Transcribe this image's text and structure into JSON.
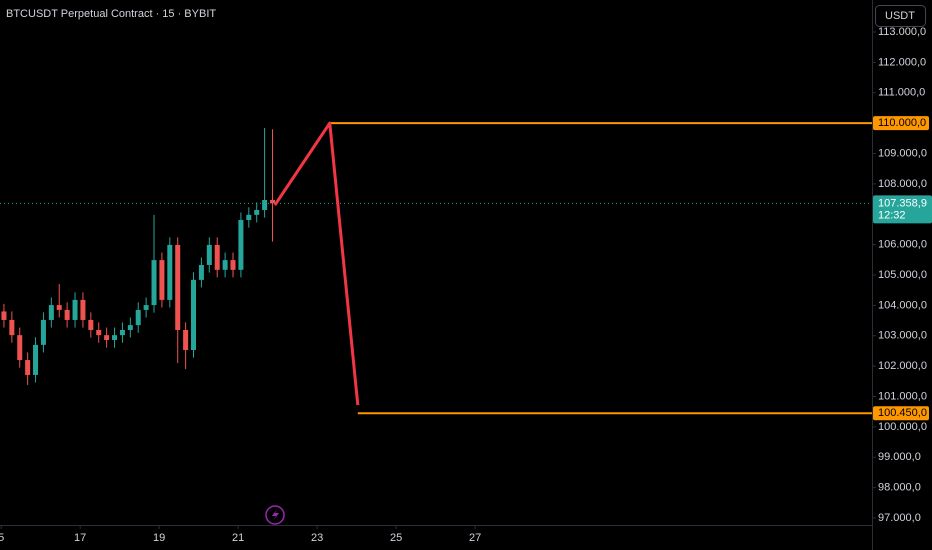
{
  "chart_data": {
    "type": "candlestick",
    "title": "BTCUSDT Perpetual Contract · 15 · BYBIT",
    "currency": "USDT",
    "up_color": "#26a69a",
    "down_color": "#ef5350",
    "x": [
      15.07,
      15.27,
      15.47,
      15.67,
      15.87,
      16.07,
      16.27,
      16.47,
      16.67,
      16.87,
      17.07,
      17.27,
      17.47,
      17.67,
      17.87,
      18.07,
      18.27,
      18.47,
      18.67,
      18.87,
      19.07,
      19.27,
      19.47,
      19.67,
      19.87,
      20.07,
      20.27,
      20.47,
      20.67,
      20.87,
      21.07,
      21.27,
      21.47,
      21.67,
      21.87
    ],
    "open": [
      103800,
      103520,
      103020,
      102200,
      101710,
      102700,
      103520,
      104010,
      103850,
      103520,
      104180,
      103520,
      103190,
      103020,
      102860,
      103020,
      103190,
      103350,
      103850,
      104010,
      105490,
      104180,
      105990,
      103190,
      102530,
      104840,
      105330,
      105990,
      105170,
      105490,
      105170,
      106810,
      106980,
      107140,
      107470
    ],
    "high": [
      104050,
      103800,
      103270,
      102450,
      102950,
      103770,
      104260,
      104700,
      104100,
      104430,
      104430,
      103770,
      103440,
      103270,
      103270,
      103440,
      103600,
      104100,
      104260,
      106980,
      105740,
      106240,
      106240,
      103440,
      105090,
      105580,
      106240,
      106240,
      105740,
      105740,
      107060,
      107230,
      107390,
      109840,
      109800
    ],
    "low": [
      103270,
      102770,
      101950,
      101380,
      101460,
      102450,
      103270,
      103600,
      103270,
      103270,
      103270,
      102940,
      102770,
      102610,
      102610,
      102770,
      102940,
      103100,
      103600,
      103760,
      103930,
      103930,
      102100,
      101900,
      102280,
      104590,
      105080,
      104920,
      104920,
      104920,
      104920,
      106560,
      106730,
      106890,
      106100
    ],
    "close": [
      103520,
      103020,
      102200,
      101710,
      102700,
      103520,
      104010,
      103850,
      103520,
      104180,
      103520,
      103190,
      103020,
      102860,
      103020,
      103190,
      103350,
      103850,
      104010,
      105490,
      104180,
      105990,
      103190,
      102530,
      104840,
      105330,
      105990,
      105170,
      105490,
      105170,
      106810,
      106980,
      107140,
      107470,
      107358.9
    ],
    "xlim": [
      14.97,
      37.05
    ],
    "xticks": [
      {
        "value": 15,
        "label": "5"
      },
      17,
      19,
      21,
      23,
      25,
      27
    ],
    "ylim": [
      96770,
      114053
    ],
    "yticks": [
      {
        "value": 97000,
        "label": "97.000,0"
      },
      {
        "value": 98000,
        "label": "98.000,0"
      },
      {
        "value": 99000,
        "label": "99.000,0"
      },
      {
        "value": 100000,
        "label": "100.000,0"
      },
      {
        "value": 101000,
        "label": "101.000,0"
      },
      {
        "value": 102000,
        "label": "102.000,0"
      },
      {
        "value": 103000,
        "label": "103.000,0"
      },
      {
        "value": 104000,
        "label": "104.000,0"
      },
      {
        "value": 105000,
        "label": "105.000,0"
      },
      {
        "value": 106000,
        "label": "106.000,0"
      },
      {
        "value": 107000,
        "label": "107.000,0"
      },
      {
        "value": 108000,
        "label": "108.000,0"
      },
      {
        "value": 109000,
        "label": "109.000,0"
      },
      {
        "value": 110000,
        "label": "110.000,0"
      },
      {
        "value": 111000,
        "label": "111.000,0"
      },
      {
        "value": 112000,
        "label": "112.000,0"
      },
      {
        "value": 113000,
        "label": "113.000,0"
      }
    ],
    "last_price": {
      "value": 107358.9,
      "label": "107.358,9"
    },
    "countdown": "12:32",
    "last_price_color": "#26a69a",
    "projection": {
      "color": "#f23645",
      "x": [
        21.93,
        23.32,
        24.03
      ],
      "y": [
        107300,
        110000,
        100720
      ]
    },
    "levels": [
      {
        "value": 110000,
        "label": "110.000,0",
        "x_start": 23.32,
        "color": "#ff9800"
      },
      {
        "value": 100450,
        "label": "100.450,0",
        "x_start": 24.03,
        "color": "#ff9800"
      }
    ]
  }
}
